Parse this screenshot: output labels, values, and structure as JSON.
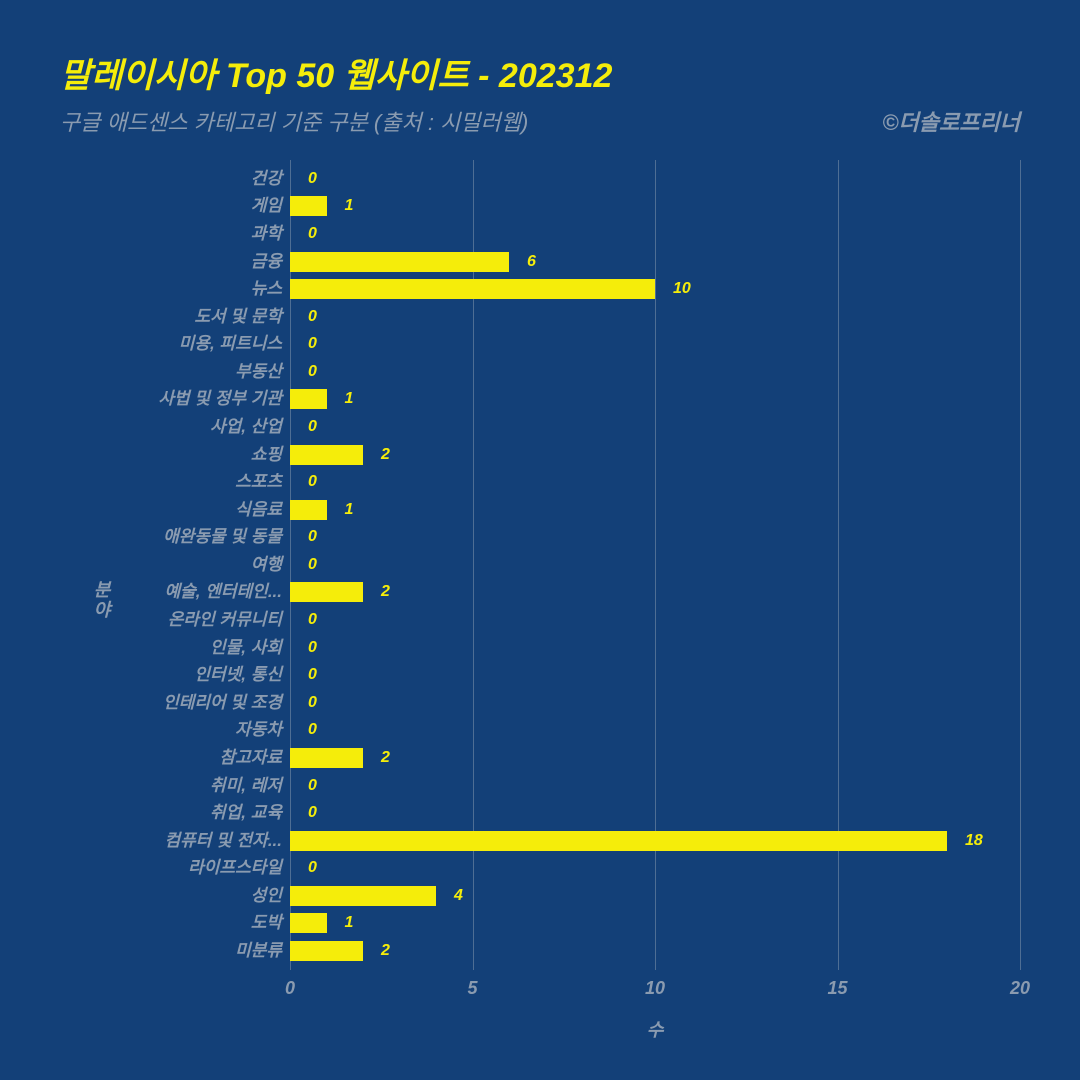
{
  "header": {
    "title": "말레이시아 Top 50 웹사이트 - 202312",
    "subtitle": "구글 애드센스 카테고리 기준 구분 (출처 : 시밀러웹)",
    "credit": "©더솔로프리너"
  },
  "chart": {
    "type": "bar",
    "orientation": "horizontal",
    "background_color": "#134078",
    "bar_color": "#f5ed0a",
    "text_color": "#8a9bb0",
    "value_color": "#f5ed0a",
    "grid_color": "#8a9bb0",
    "x_axis_title": "수",
    "y_axis_title": "분야",
    "xlim": [
      0,
      20
    ],
    "x_ticks": [
      0,
      5,
      10,
      15,
      20
    ],
    "title_fontsize": 34,
    "subtitle_fontsize": 22,
    "label_fontsize": 17,
    "value_fontsize": 16,
    "tick_fontsize": 18,
    "font_style": "italic",
    "font_weight": "bold",
    "categories": [
      {
        "label": "건강",
        "value": 0
      },
      {
        "label": "게임",
        "value": 1
      },
      {
        "label": "과학",
        "value": 0
      },
      {
        "label": "금융",
        "value": 6
      },
      {
        "label": "뉴스",
        "value": 10
      },
      {
        "label": "도서 및 문학",
        "value": 0
      },
      {
        "label": "미용, 피트니스",
        "value": 0
      },
      {
        "label": "부동산",
        "value": 0
      },
      {
        "label": "사법 및 정부 기관",
        "value": 1
      },
      {
        "label": "사업, 산업",
        "value": 0
      },
      {
        "label": "쇼핑",
        "value": 2
      },
      {
        "label": "스포츠",
        "value": 0
      },
      {
        "label": "식음료",
        "value": 1
      },
      {
        "label": "애완동물 및 동물",
        "value": 0
      },
      {
        "label": "여행",
        "value": 0
      },
      {
        "label": "예술, 엔터테인...",
        "value": 2
      },
      {
        "label": "온라인 커뮤니티",
        "value": 0
      },
      {
        "label": "인물, 사회",
        "value": 0
      },
      {
        "label": "인터넷, 통신",
        "value": 0
      },
      {
        "label": "인테리어 및 조경",
        "value": 0
      },
      {
        "label": "자동차",
        "value": 0
      },
      {
        "label": "참고자료",
        "value": 2
      },
      {
        "label": "취미, 레저",
        "value": 0
      },
      {
        "label": "취업, 교육",
        "value": 0
      },
      {
        "label": "컴퓨터 및 전자...",
        "value": 18
      },
      {
        "label": "라이프스타일",
        "value": 0
      },
      {
        "label": "성인",
        "value": 4
      },
      {
        "label": "도박",
        "value": 1
      },
      {
        "label": "미분류",
        "value": 2
      }
    ]
  }
}
